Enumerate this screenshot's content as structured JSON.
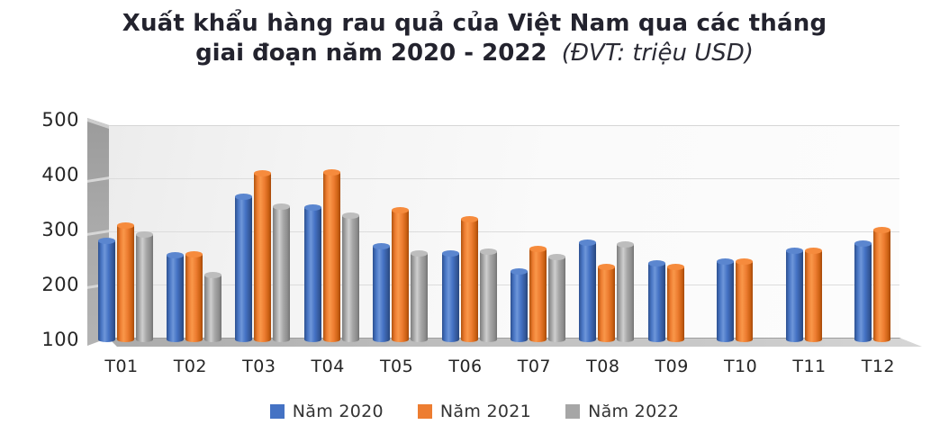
{
  "title": {
    "line1": "Xuất khẩu hàng rau quả của Việt Nam qua các tháng",
    "line2_bold": "giai đoạn năm 2020 - 2022",
    "line2_unit": "(ĐVT: triệu USD)"
  },
  "chart_data": {
    "type": "bar",
    "style": "3d-cylinder",
    "title": "Xuất khẩu hàng rau quả của Việt Nam qua các tháng giai đoạn năm 2020 - 2022",
    "unit_label": "ĐVT: triệu USD",
    "categories": [
      "T01",
      "T02",
      "T03",
      "T04",
      "T05",
      "T06",
      "T07",
      "T08",
      "T09",
      "T10",
      "T11",
      "T12"
    ],
    "series": [
      {
        "name": "Năm 2020",
        "color": "#4472C4",
        "values": [
          280,
          254,
          360,
          341,
          270,
          258,
          224,
          277,
          240,
          243,
          262,
          276
        ]
      },
      {
        "name": "Năm 2021",
        "color": "#ED7D31",
        "values": [
          308,
          256,
          403,
          405,
          336,
          320,
          266,
          233,
          233,
          242,
          263,
          300
        ]
      },
      {
        "name": "Năm 2022",
        "color": "#A6A6A6",
        "values": [
          291,
          218,
          343,
          326,
          258,
          260,
          251,
          273,
          null,
          null,
          null,
          null
        ]
      }
    ],
    "ylim": [
      100,
      500
    ],
    "yticks": [
      100,
      200,
      300,
      400,
      500
    ],
    "grid": true,
    "legend_position": "bottom",
    "axis_text_color": "#262626",
    "wall_color": "#A9A9A9",
    "floor_color": "#BDBDBD"
  }
}
